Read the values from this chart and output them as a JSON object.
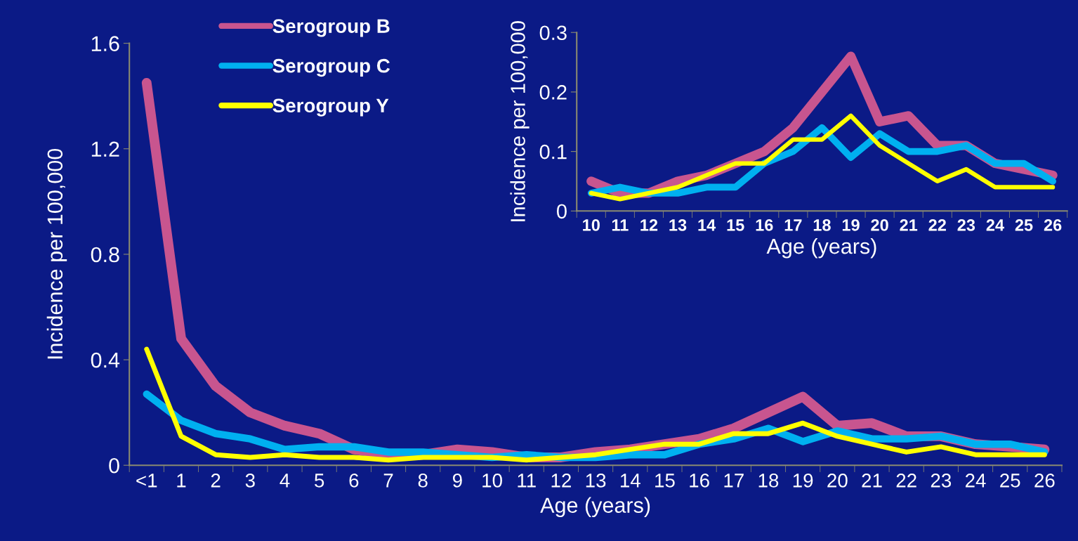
{
  "chart_data": [
    {
      "type": "line",
      "xlabel": "Age (years)",
      "ylabel": "Incidence per 100,000",
      "categories": [
        "<1",
        "1",
        "2",
        "3",
        "4",
        "5",
        "6",
        "7",
        "8",
        "9",
        "10",
        "11",
        "12",
        "13",
        "14",
        "15",
        "16",
        "17",
        "18",
        "19",
        "20",
        "21",
        "22",
        "23",
        "24",
        "25",
        "26"
      ],
      "ylim": [
        0,
        1.6
      ],
      "yticks": [
        0,
        0.4,
        0.8,
        1.2,
        1.6
      ],
      "grid": false,
      "legend": "top left",
      "marker": "none",
      "line_style": "solid",
      "series": [
        {
          "name": "Serogroup B",
          "color": "#c8558f",
          "values": [
            1.45,
            0.48,
            0.3,
            0.2,
            0.15,
            0.12,
            0.06,
            0.04,
            0.04,
            0.06,
            0.05,
            0.03,
            0.03,
            0.05,
            0.06,
            0.08,
            0.1,
            0.14,
            0.2,
            0.26,
            0.15,
            0.16,
            0.11,
            0.11,
            0.08,
            0.07,
            0.06
          ]
        },
        {
          "name": "Serogroup C",
          "color": "#00b0f0",
          "values": [
            0.27,
            0.17,
            0.12,
            0.1,
            0.06,
            0.07,
            0.07,
            0.05,
            0.05,
            0.04,
            0.03,
            0.04,
            0.03,
            0.03,
            0.04,
            0.04,
            0.08,
            0.1,
            0.14,
            0.09,
            0.13,
            0.1,
            0.1,
            0.11,
            0.08,
            0.08,
            0.05
          ]
        },
        {
          "name": "Serogroup Y",
          "color": "#ffff00",
          "values": [
            0.44,
            0.11,
            0.04,
            0.03,
            0.04,
            0.03,
            0.03,
            0.02,
            0.03,
            0.03,
            0.03,
            0.02,
            0.03,
            0.04,
            0.06,
            0.08,
            0.08,
            0.12,
            0.12,
            0.16,
            0.11,
            0.08,
            0.05,
            0.07,
            0.04,
            0.04,
            0.04
          ]
        }
      ]
    },
    {
      "type": "line",
      "xlabel": "Age (years)",
      "ylabel": "Incidence per 100,000",
      "categories": [
        "10",
        "11",
        "12",
        "13",
        "14",
        "15",
        "16",
        "17",
        "18",
        "19",
        "20",
        "21",
        "22",
        "23",
        "24",
        "25",
        "26"
      ],
      "ylim": [
        0,
        0.3
      ],
      "yticks": [
        0,
        0.1,
        0.2,
        0.3
      ],
      "grid": false,
      "legend": false,
      "marker": "none",
      "line_style": "solid",
      "series": [
        {
          "color": "#c8558f",
          "values": [
            0.05,
            0.03,
            0.03,
            0.05,
            0.06,
            0.08,
            0.1,
            0.14,
            0.2,
            0.26,
            0.15,
            0.16,
            0.11,
            0.11,
            0.08,
            0.07,
            0.06
          ]
        },
        {
          "color": "#00b0f0",
          "values": [
            0.03,
            0.04,
            0.03,
            0.03,
            0.04,
            0.04,
            0.08,
            0.1,
            0.14,
            0.09,
            0.13,
            0.1,
            0.1,
            0.11,
            0.08,
            0.08,
            0.05
          ]
        },
        {
          "color": "#ffff00",
          "values": [
            0.03,
            0.02,
            0.03,
            0.04,
            0.06,
            0.08,
            0.08,
            0.12,
            0.12,
            0.16,
            0.11,
            0.08,
            0.05,
            0.07,
            0.04,
            0.04,
            0.04
          ]
        }
      ]
    }
  ]
}
